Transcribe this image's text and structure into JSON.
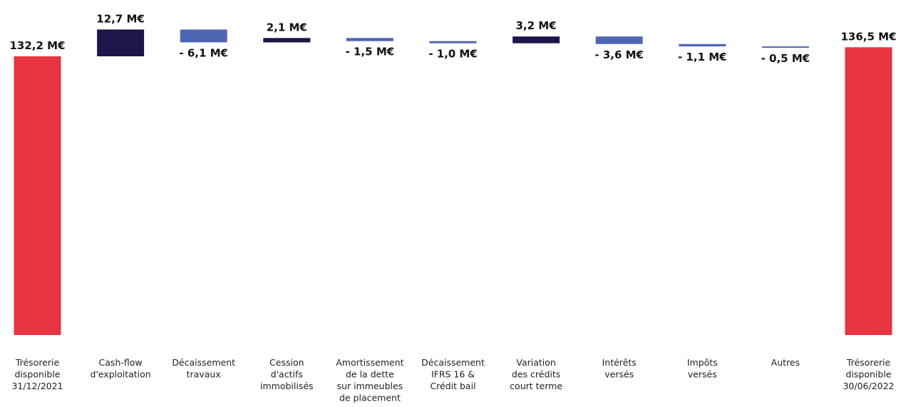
{
  "chart_data": {
    "type": "bar",
    "subtype": "waterfall",
    "title": "",
    "xlabel": "",
    "ylabel": "",
    "unit": "M€",
    "grid": false,
    "legend": "none",
    "categories": [
      [
        "Trésorerie",
        "disponible",
        "31/12/2021"
      ],
      [
        "Cash-flow",
        "d'exploitation"
      ],
      [
        "Décaissement",
        "travaux"
      ],
      [
        "Cession",
        "d'actifs",
        "immobilisés"
      ],
      [
        "Amortissement",
        "de la dette",
        "sur immeubles",
        "de placement"
      ],
      [
        "Décaissement",
        "IFRS 16 &",
        "Crédit bail"
      ],
      [
        "Variation",
        "des crédits",
        "court terme"
      ],
      [
        "Intérêts",
        "versés"
      ],
      [
        "Impôts",
        "versés"
      ],
      [
        "Autres"
      ],
      [
        "Trésorerie",
        "disponible",
        "30/06/2022"
      ]
    ],
    "values": [
      132.2,
      12.7,
      -6.1,
      2.1,
      -1.5,
      -1.0,
      3.2,
      -3.6,
      -1.1,
      -0.5,
      136.5
    ],
    "kinds": [
      "total",
      "delta",
      "delta",
      "delta",
      "delta",
      "delta",
      "delta",
      "delta",
      "delta",
      "delta",
      "total"
    ],
    "value_labels": [
      "132,2 M€",
      "12,7 M€",
      "- 6,1 M€",
      "2,1 M€",
      "- 1,5 M€",
      "- 1,0 M€",
      "3,2 M€",
      "- 3,6 M€",
      "- 1,1 M€",
      "- 0,5 M€",
      "136,5 M€"
    ],
    "colors": {
      "total": "#e83440",
      "increase": "#1e1548",
      "decrease": "#4f66b3"
    }
  }
}
